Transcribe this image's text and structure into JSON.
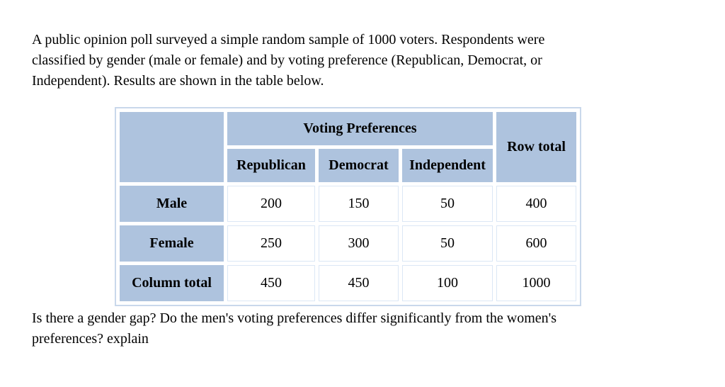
{
  "intro": {
    "lines": [
      "A public opinion poll surveyed a simple random sample of 1000 voters. Respondents were",
      "classified by gender (male or female) and by voting preference (Republican, Democrat, or",
      "Independent). Results are shown in the table below."
    ]
  },
  "table": {
    "group_header": "Voting Preferences",
    "row_total_header": "Row total",
    "column_headers": [
      "Republican",
      "Democrat",
      "Independent"
    ],
    "rows": [
      {
        "label": "Male",
        "values": [
          "200",
          "150",
          "50",
          "400"
        ]
      },
      {
        "label": "Female",
        "values": [
          "250",
          "300",
          "50",
          "600"
        ]
      },
      {
        "label": "Column total",
        "values": [
          "450",
          "450",
          "100",
          "1000"
        ]
      }
    ]
  },
  "question": {
    "lines": [
      "Is there a gender gap? Do the men's voting preferences differ significantly from the women's",
      "preferences? explain"
    ]
  },
  "colors": {
    "cell_blue": "#aec3de",
    "table_border": "#c9d8eb",
    "text": "#000000",
    "background": "#ffffff"
  }
}
